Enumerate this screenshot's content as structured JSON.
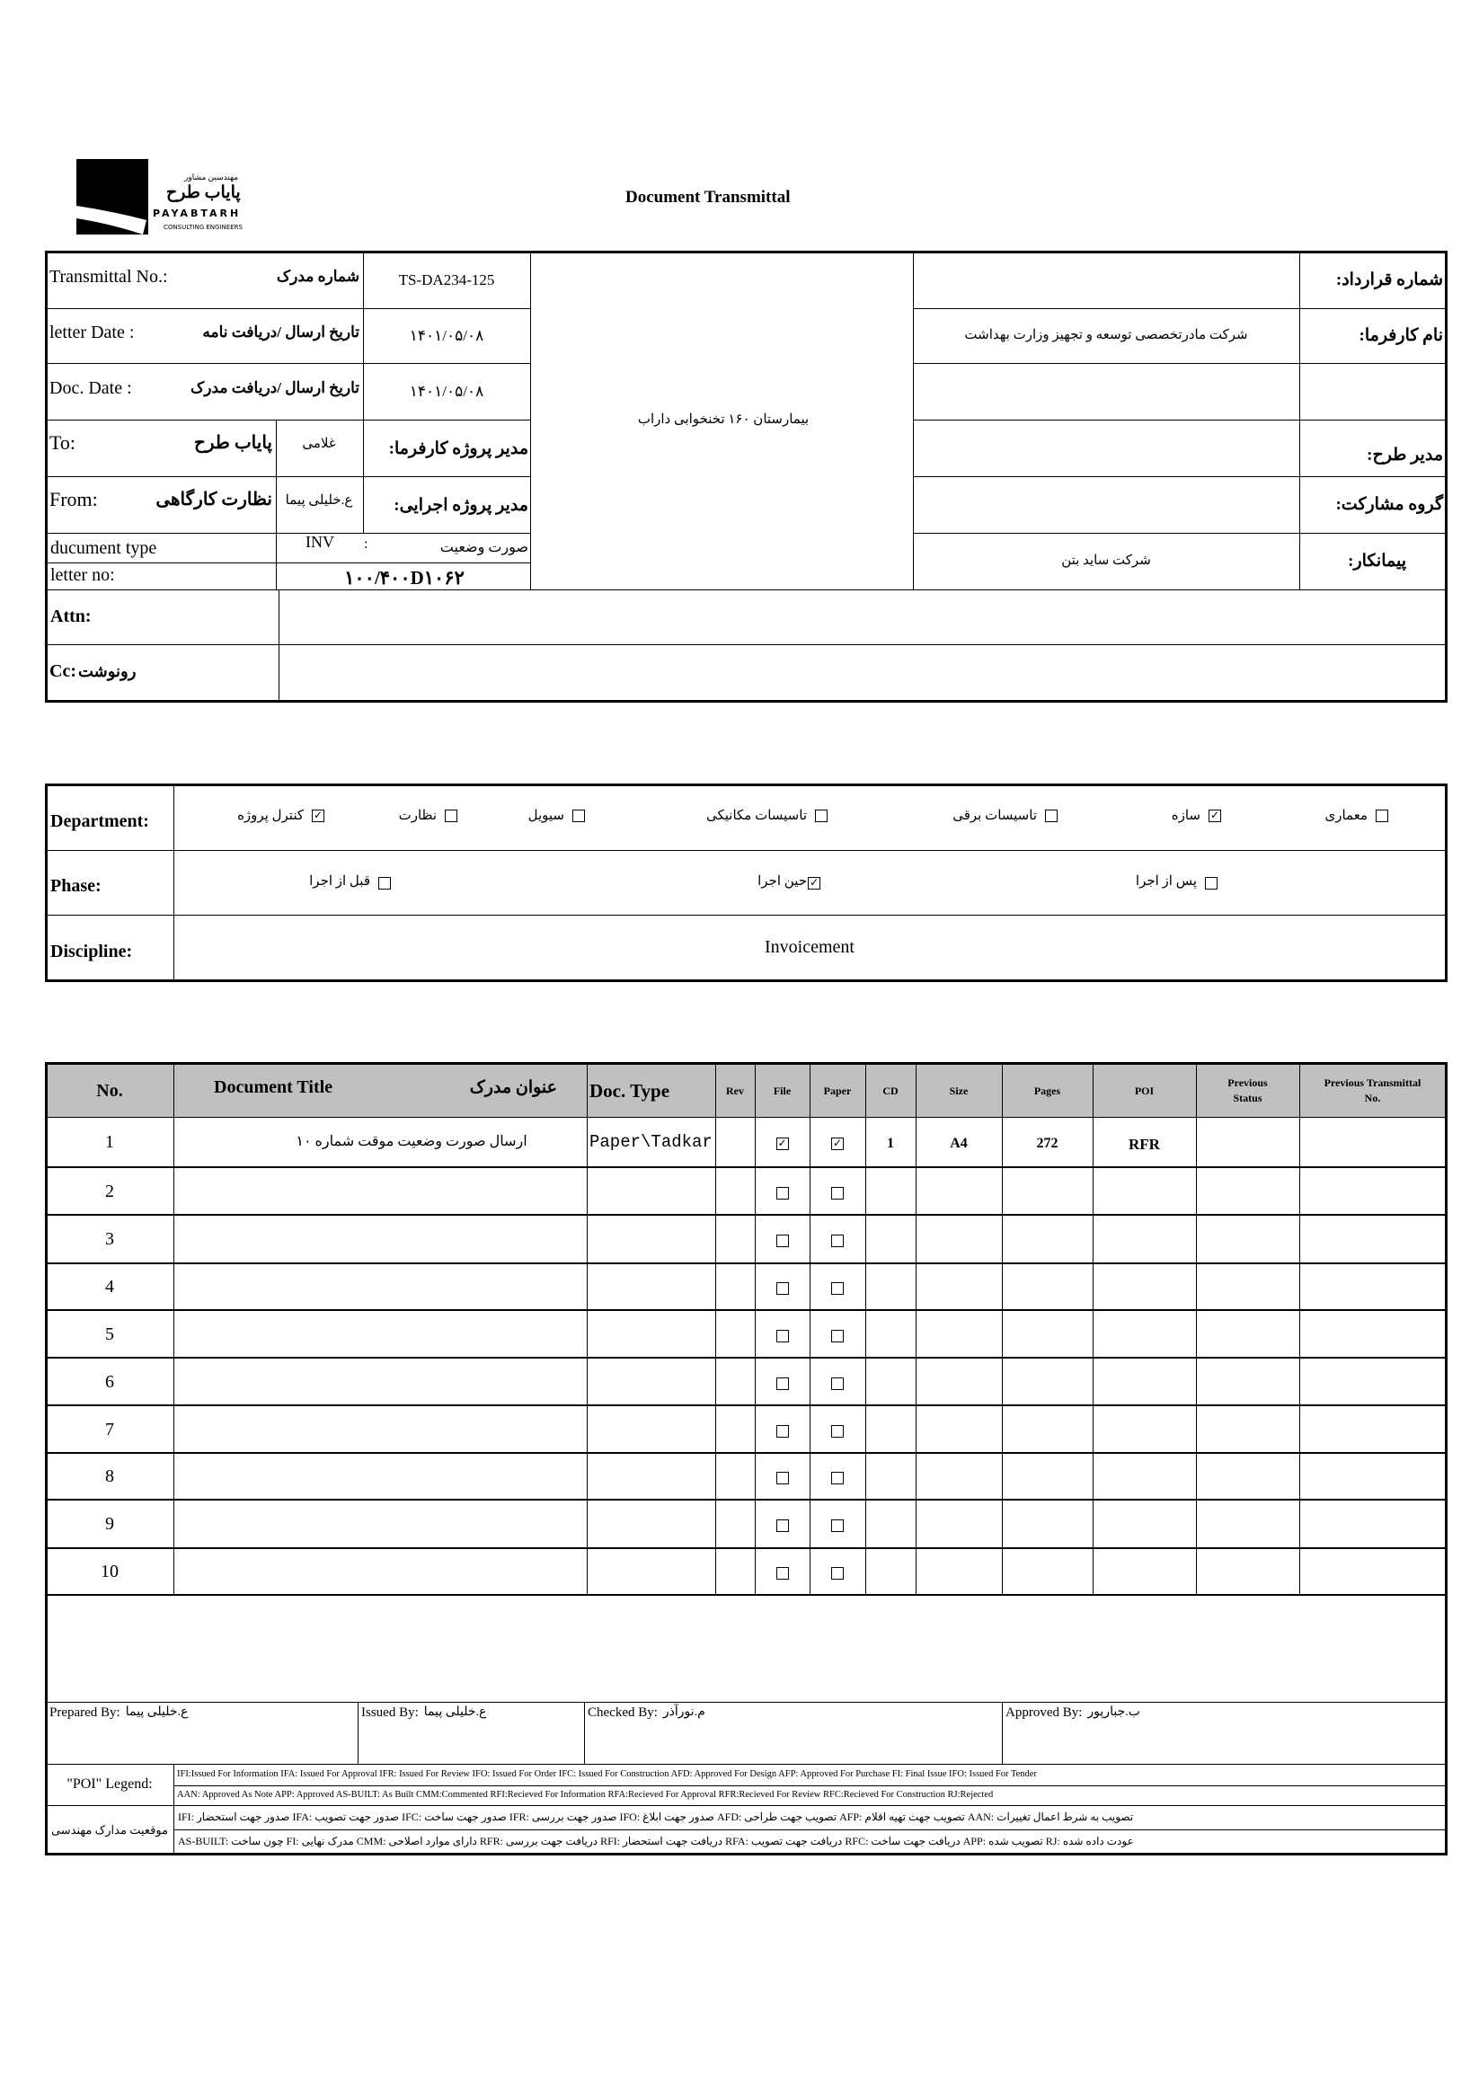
{
  "logo": {
    "fa_small": "مهندسین مشاور",
    "fa_name": "پایاب طرح",
    "en_name": "PAYABTARH",
    "en_sub": "CONSULTING ENGINEERS"
  },
  "title": "Document Transmittal",
  "header": {
    "transmittal_label_en": "Transmittal No.:",
    "transmittal_label_fa": "شماره مدرک",
    "transmittal_value": "TS-DA234-125",
    "letter_date_label_en": "letter Date  :",
    "letter_date_label_fa": "تاریخ ارسال /دریافت نامه",
    "letter_date_value": "۱۴۰۱/۰۵/۰۸",
    "doc_date_label_en": "Doc. Date :",
    "doc_date_label_fa": "تاریخ ارسال /دریافت مدرک",
    "doc_date_value": "۱۴۰۱/۰۵/۰۸",
    "to_label": "To:",
    "to_value": "پایاب طرح",
    "to_person": "غلامی",
    "to_role": "مدیر پروژه کارفرما:",
    "from_label": "From:",
    "from_value": "نظارت کارگاهی",
    "from_person": "ع.خلیلی پیما",
    "from_role": "مدیر پروژه اجرایی:",
    "doc_type_label": "ducument type",
    "doc_type_code": "INV",
    "doc_type_sep": ":",
    "doc_type_fa": "صورت وضعیت",
    "letter_no_label": "letter no:",
    "letter_no_value": "۱۰۰/۴۰۰D۱۰۶۲",
    "project_name": "بیمارستان ۱۶۰ تخنخوابی داراب",
    "right_rows": [
      {
        "label": "شماره قرارداد:",
        "value": ""
      },
      {
        "label": "نام کارفرما:",
        "value": "شرکت مادرتخصصی توسعه و تجهیز وزارت بهداشت"
      },
      {
        "label": "",
        "value": ""
      },
      {
        "label": "مدیر طرح:",
        "value": ""
      },
      {
        "label": "گروه مشارکت:",
        "value": ""
      },
      {
        "label": "پیمانکار:",
        "value": "شرکت ساید بتن"
      }
    ],
    "attn_label": "Attn:",
    "cc_label_en": "Cc:",
    "cc_label_fa": "رونوشت"
  },
  "classification": {
    "department_label": "Department:",
    "departments": [
      {
        "label": "معماری",
        "checked": false
      },
      {
        "label": "سازه",
        "checked": true
      },
      {
        "label": "تاسیسات برقی",
        "checked": false
      },
      {
        "label": "تاسیسات مکانیکی",
        "checked": false
      },
      {
        "label": "سیویل",
        "checked": false
      },
      {
        "label": "نظارت",
        "checked": false
      },
      {
        "label": "کنترل پروژه",
        "checked": true
      }
    ],
    "phase_label": "Phase:",
    "phases": [
      {
        "label": "پس از اجرا",
        "checked": false
      },
      {
        "label": "حین اجرا",
        "checked": true
      },
      {
        "label": "قبل از اجرا",
        "checked": false
      }
    ],
    "discipline_label": "Discipline:",
    "discipline_value": "Invoicement"
  },
  "documents": {
    "columns": [
      "No.",
      "Document Title",
      "عنوان مدرک",
      "Doc. Type",
      "Rev",
      "File",
      "Paper",
      "CD",
      "Size",
      "Pages",
      "POI",
      "Previous Status",
      "Previous Transmittal No."
    ],
    "rows": [
      {
        "no": "1",
        "title": "ارسال صورت وضعیت موقت شماره ۱۰",
        "doc_type": "Paper\\Tadkar",
        "rev": "",
        "file": true,
        "paper": true,
        "cd": "1",
        "size": "A4",
        "pages": "272",
        "poi": "RFR",
        "prev_status": "",
        "prev_no": ""
      },
      {
        "no": "2",
        "title": "",
        "doc_type": "",
        "rev": "",
        "file": false,
        "paper": false,
        "cd": "",
        "size": "",
        "pages": "",
        "poi": "",
        "prev_status": "",
        "prev_no": ""
      },
      {
        "no": "3",
        "title": "",
        "doc_type": "",
        "rev": "",
        "file": false,
        "paper": false,
        "cd": "",
        "size": "",
        "pages": "",
        "poi": "",
        "prev_status": "",
        "prev_no": ""
      },
      {
        "no": "4",
        "title": "",
        "doc_type": "",
        "rev": "",
        "file": false,
        "paper": false,
        "cd": "",
        "size": "",
        "pages": "",
        "poi": "",
        "prev_status": "",
        "prev_no": ""
      },
      {
        "no": "5",
        "title": "",
        "doc_type": "",
        "rev": "",
        "file": false,
        "paper": false,
        "cd": "",
        "size": "",
        "pages": "",
        "poi": "",
        "prev_status": "",
        "prev_no": ""
      },
      {
        "no": "6",
        "title": "",
        "doc_type": "",
        "rev": "",
        "file": false,
        "paper": false,
        "cd": "",
        "size": "",
        "pages": "",
        "poi": "",
        "prev_status": "",
        "prev_no": ""
      },
      {
        "no": "7",
        "title": "",
        "doc_type": "",
        "rev": "",
        "file": false,
        "paper": false,
        "cd": "",
        "size": "",
        "pages": "",
        "poi": "",
        "prev_status": "",
        "prev_no": ""
      },
      {
        "no": "8",
        "title": "",
        "doc_type": "",
        "rev": "",
        "file": false,
        "paper": false,
        "cd": "",
        "size": "",
        "pages": "",
        "poi": "",
        "prev_status": "",
        "prev_no": ""
      },
      {
        "no": "9",
        "title": "",
        "doc_type": "",
        "rev": "",
        "file": false,
        "paper": false,
        "cd": "",
        "size": "",
        "pages": "",
        "poi": "",
        "prev_status": "",
        "prev_no": ""
      },
      {
        "no": "10",
        "title": "",
        "doc_type": "",
        "rev": "",
        "file": false,
        "paper": false,
        "cd": "",
        "size": "",
        "pages": "",
        "poi": "",
        "prev_status": "",
        "prev_no": ""
      }
    ]
  },
  "signatures": [
    {
      "label": "Prepared By:",
      "name": "ع.خلیلی پیما"
    },
    {
      "label": "Issued By:",
      "name": "ع.خلیلی پیما"
    },
    {
      "label": "Checked By:",
      "name": "م.نورآذر"
    },
    {
      "label": "Approved By:",
      "name": "ب.جبارپور"
    }
  ],
  "legend": {
    "poi_label": "\"POI\" Legend:",
    "poi_line1": "IFI:Issued For Information  IFA: Issued For Approval  IFR: Issued For Review  IFO: Issued For Order  IFC: Issued For Construction AFD: Approved For Design AFP: Approved For Purchase  FI: Final Issue  IFO: Issued For Tender",
    "poi_line2": "AAN: Approved As Note  APP: Approved  AS-BUILT: As Built CMM:Commented  RFI:Recieved For Information  RFA:Recieved For Approval  RFR:Recieved For Review  RFC:Recieved For Construction  RJ:Rejected",
    "fa_label": "موقعیت مدارک مهندسی",
    "fa_line1": "IFI: صدور جهت استحضار    IFA: صدور جهت تصویب    IFC: صدور جهت ساخت    IFR: صدور جهت بررسی    IFO: صدور جهت ابلاغ    AFD: تصویب جهت طراحی    AFP: تصویب جهت تهیه اقلام    AAN: تصویب به شرط اعمال تغییرات",
    "fa_line2": "AS-BUILT: چون ساخت    FI: مدرک نهایی    CMM: دارای موارد اصلاحی    RFR: دریافت جهت بررسی    RFI: دریافت جهت استحضار    RFA: دریافت جهت تصویب    RFC: دریافت جهت ساخت    APP: تصویب شده    RJ: عودت داده شده"
  }
}
